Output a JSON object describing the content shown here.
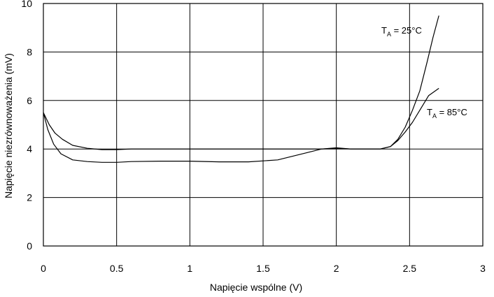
{
  "chart_data": {
    "type": "line",
    "title": "",
    "xlabel": "Napięcie wspólne (V)",
    "ylabel": "Napięcie niezrównoważenia (mV)",
    "xlim": [
      0,
      3
    ],
    "ylim": [
      0,
      10
    ],
    "xticks": [
      0,
      0.5,
      1,
      1.5,
      2,
      2.5,
      3
    ],
    "xtick_labels": [
      "0",
      "0.5",
      "1",
      "1.5",
      "2",
      "2.5",
      "3"
    ],
    "yticks": [
      0,
      2,
      4,
      6,
      8,
      10
    ],
    "ytick_labels": [
      "0",
      "2",
      "4",
      "6",
      "8",
      "10"
    ],
    "grid": true,
    "series": [
      {
        "name": "TA = 25°C",
        "label_main": "T",
        "label_sub": "A",
        "label_rest": " = 25°C",
        "x": [
          0,
          0.03,
          0.07,
          0.12,
          0.2,
          0.3,
          0.4,
          0.5,
          0.6,
          0.8,
          1.0,
          1.2,
          1.4,
          1.6,
          1.8,
          1.9,
          2.0,
          2.1,
          2.2,
          2.3,
          2.37,
          2.42,
          2.47,
          2.52,
          2.57,
          2.62,
          2.66,
          2.7
        ],
        "y": [
          5.5,
          4.8,
          4.2,
          3.8,
          3.55,
          3.48,
          3.45,
          3.45,
          3.48,
          3.5,
          3.5,
          3.47,
          3.47,
          3.55,
          3.85,
          4.0,
          4.03,
          4.0,
          4.0,
          4.0,
          4.1,
          4.4,
          4.9,
          5.6,
          6.4,
          7.6,
          8.6,
          9.5
        ]
      },
      {
        "name": "TA = 85°C",
        "label_main": "T",
        "label_sub": "A",
        "label_rest": " = 85°C",
        "x": [
          0,
          0.04,
          0.08,
          0.13,
          0.2,
          0.3,
          0.4,
          0.5,
          0.6,
          0.8,
          1.0,
          1.2,
          1.4,
          1.6,
          1.8,
          1.9,
          2.0,
          2.1,
          2.2,
          2.3,
          2.37,
          2.42,
          2.47,
          2.52,
          2.58,
          2.63,
          2.7
        ],
        "y": [
          5.5,
          5.0,
          4.65,
          4.4,
          4.15,
          4.03,
          3.97,
          3.97,
          4.0,
          4.0,
          4.0,
          4.0,
          4.0,
          4.0,
          4.0,
          4.0,
          4.05,
          4.0,
          4.0,
          4.0,
          4.1,
          4.35,
          4.7,
          5.1,
          5.7,
          6.2,
          6.5
        ]
      }
    ]
  }
}
